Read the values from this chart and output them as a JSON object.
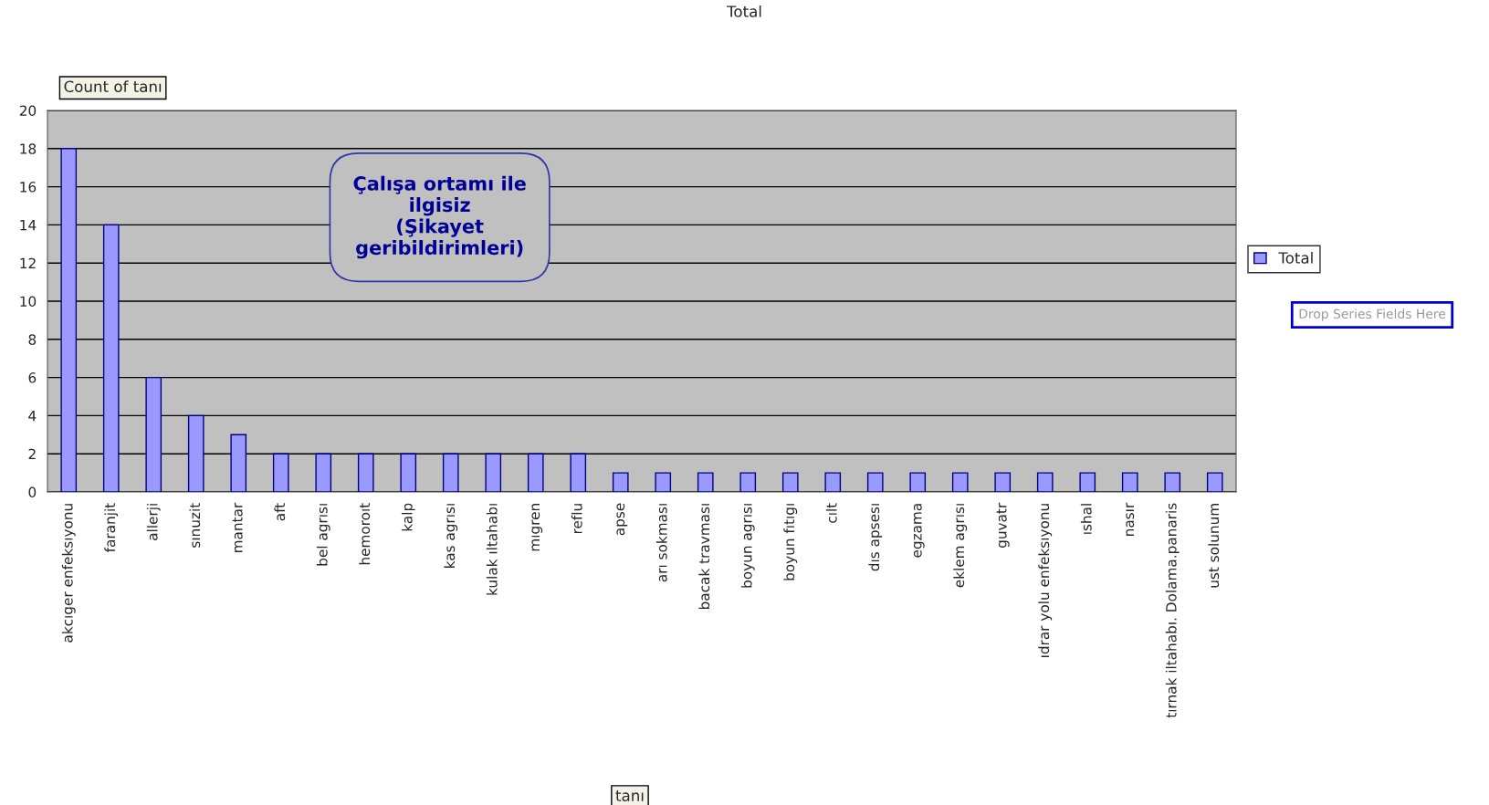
{
  "chart_data": {
    "type": "bar",
    "title": "Total",
    "xlabel": "tanı",
    "ylabel": "Count of tanı",
    "categories": [
      "akcıger enfeksıyonu",
      "faranjit",
      "allerji",
      "sınuzit",
      "mantar",
      "aft",
      "bel agrısı",
      "hemoroıt",
      "kalp",
      "kas agrısı",
      "kulak ıltahabı",
      "mıgren",
      "reflu",
      "apse",
      "arı sokması",
      "bacak travması",
      "boyun agrısı",
      "boyun fıtıgı",
      "cılt",
      "dıs apsesı",
      "egzama",
      "eklem agrısı",
      "guvatr",
      "ıdrar yolu enfeksıyonu",
      "ıshal",
      "nasır",
      "tırnak iltahabı. Dolama.panaris",
      "ust solunum"
    ],
    "series": [
      {
        "name": "Total",
        "color": "#9999ff",
        "values": [
          18,
          14,
          6,
          4,
          3,
          2,
          2,
          2,
          2,
          2,
          2,
          2,
          2,
          1,
          1,
          1,
          1,
          1,
          1,
          1,
          1,
          1,
          1,
          1,
          1,
          1,
          1,
          1
        ]
      }
    ],
    "ylim": [
      0,
      20
    ],
    "yticks": [
      0,
      2,
      4,
      6,
      8,
      10,
      12,
      14,
      16,
      18,
      20
    ],
    "grid": "y",
    "legend": "right",
    "annotations": [
      "Çalışa ortamı ile\nilgisiz\n(Şikayet\ngeribildirimleri)",
      "Drop Series Fields Here"
    ]
  }
}
